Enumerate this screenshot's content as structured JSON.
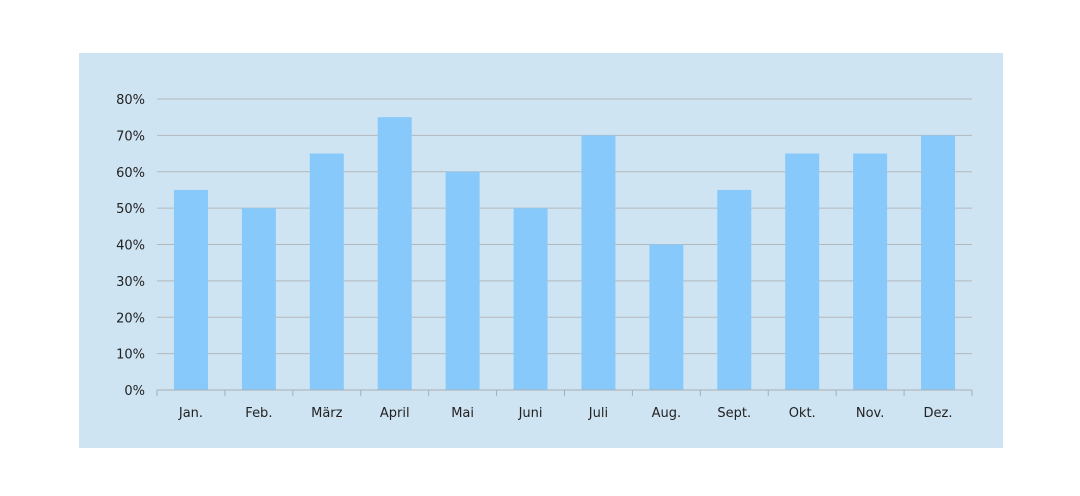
{
  "chart_data": {
    "type": "bar",
    "categories": [
      "Jan.",
      "Feb.",
      "März",
      "April",
      "Mai",
      "Juni",
      "Juli",
      "Aug.",
      "Sept.",
      "Okt.",
      "Nov.",
      "Dez."
    ],
    "values": [
      55,
      50,
      65,
      75,
      60,
      50,
      70,
      40,
      55,
      65,
      65,
      70
    ],
    "ylim": [
      0,
      80
    ],
    "yticks": [
      "0%",
      "10%",
      "20%",
      "30%",
      "40%",
      "50%",
      "60%",
      "70%",
      "80%"
    ],
    "title": "",
    "xlabel": "",
    "ylabel": "",
    "grid": true,
    "colors": {
      "background": "#cfe4f2",
      "bar": "#87c9fa",
      "grid": "#b3b8bc",
      "axis": "#a9adb1"
    }
  }
}
